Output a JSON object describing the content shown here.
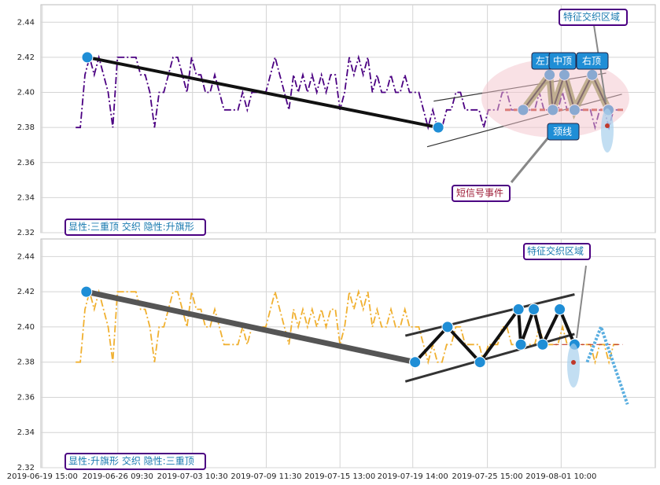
{
  "chart_data": [
    {
      "type": "line",
      "color": "#4b0082",
      "grid": true,
      "xlim": [
        -7.5,
        125
      ],
      "xticks": [
        -7.2,
        9.1,
        25.2,
        41.1,
        57,
        72.7,
        88.8,
        104.7
      ],
      "ylim": [
        2.32,
        2.45
      ],
      "yticks": [
        2.32,
        2.34,
        2.36,
        2.38,
        {
          "value": 2.4,
          "label": "2.40"
        },
        2.42,
        2.44
      ],
      "values": [
        2.38,
        2.38,
        2.41,
        2.42,
        2.41,
        2.42,
        2.41,
        2.4,
        2.38,
        2.42,
        2.42,
        2.42,
        2.42,
        2.42,
        2.41,
        2.41,
        2.4,
        2.38,
        2.4,
        2.4,
        2.41,
        2.42,
        2.42,
        2.41,
        2.4,
        2.42,
        2.41,
        2.41,
        2.4,
        2.4,
        2.41,
        2.4,
        2.39,
        2.39,
        2.39,
        2.39,
        2.4,
        2.39,
        2.4,
        2.4,
        2.4,
        2.4,
        2.41,
        2.42,
        2.41,
        2.4,
        2.39,
        2.41,
        2.4,
        2.41,
        2.4,
        2.41,
        2.4,
        2.41,
        2.4,
        2.41,
        2.41,
        2.39,
        2.4,
        2.42,
        2.41,
        2.42,
        2.41,
        2.42,
        2.4,
        2.41,
        2.4,
        2.4,
        2.41,
        2.4,
        2.4,
        2.41,
        2.4,
        2.4,
        2.4,
        2.39,
        2.38,
        2.39,
        2.38,
        2.38,
        2.39,
        2.39,
        2.4,
        2.4,
        2.39,
        2.39,
        2.39,
        2.39,
        2.38,
        2.39,
        2.39,
        2.39,
        2.4,
        2.4,
        2.39,
        2.39,
        2.39,
        2.39,
        2.39,
        2.39,
        2.4,
        2.39,
        2.39,
        2.39,
        2.39,
        2.4,
        2.39,
        2.39,
        2.39,
        2.39,
        2.39,
        2.39,
        2.38,
        2.39,
        2.39,
        2.38,
        2.39,
        2.39
      ],
      "trend": {
        "x": [
          2.5,
          78.2
        ],
        "values": [
          2.42,
          2.38
        ]
      },
      "pattern": {
        "x": [
          96.5,
          102.2,
          102.9,
          105.4,
          107.6,
          111.4,
          114.9
        ],
        "values": [
          2.39,
          2.41,
          2.39,
          2.41,
          2.39,
          2.41,
          2.39
        ]
      },
      "neckline": {
        "x": [
          92.6,
          118.6
        ],
        "values": [
          2.39,
          2.39
        ]
      },
      "channel_upper": {
        "x": [
          77.2,
          114.4
        ],
        "values": [
          2.395,
          2.411
        ]
      },
      "channel_lower": {
        "x": [
          75.8,
          117.8
        ],
        "values": [
          2.369,
          2.399
        ]
      },
      "annotations": [
        "左顶",
        "中顶",
        "右顶",
        "颈线",
        "特征交织区域",
        "短信号事件",
        "显性:三重顶 交织 隐性:升旗形"
      ]
    },
    {
      "type": "line",
      "color": "#f0b030",
      "grid": true,
      "xlim": [
        -7.5,
        125
      ],
      "xticks": [
        {
          "value": -7.2,
          "label": "2019-06-19 15:00"
        },
        {
          "value": 9.1,
          "label": "2019-06-26 09:30"
        },
        {
          "value": 25.2,
          "label": "2019-07-03 10:30"
        },
        {
          "value": 41.1,
          "label": "2019-07-09 11:30"
        },
        {
          "value": 57,
          "label": "2019-07-15 13:00"
        },
        {
          "value": 72.7,
          "label": "2019-07-19 14:00"
        },
        {
          "value": 88.8,
          "label": "2019-07-25 15:00"
        },
        {
          "value": 104.7,
          "label": "2019-08-01 10:00"
        }
      ],
      "ylim": [
        2.32,
        2.45
      ],
      "yticks": [
        2.32,
        2.34,
        2.36,
        2.38,
        {
          "value": 2.4,
          "label": "2.40"
        },
        2.42,
        2.44
      ],
      "values": [
        2.38,
        2.38,
        2.41,
        2.42,
        2.41,
        2.42,
        2.41,
        2.4,
        2.38,
        2.42,
        2.42,
        2.42,
        2.42,
        2.42,
        2.41,
        2.41,
        2.4,
        2.38,
        2.4,
        2.4,
        2.41,
        2.42,
        2.42,
        2.41,
        2.4,
        2.42,
        2.41,
        2.41,
        2.4,
        2.4,
        2.41,
        2.4,
        2.39,
        2.39,
        2.39,
        2.39,
        2.4,
        2.39,
        2.4,
        2.4,
        2.4,
        2.4,
        2.41,
        2.42,
        2.41,
        2.4,
        2.39,
        2.41,
        2.4,
        2.41,
        2.4,
        2.41,
        2.4,
        2.41,
        2.4,
        2.41,
        2.41,
        2.39,
        2.4,
        2.42,
        2.41,
        2.42,
        2.41,
        2.42,
        2.4,
        2.41,
        2.4,
        2.4,
        2.41,
        2.4,
        2.4,
        2.41,
        2.4,
        2.4,
        2.4,
        2.39,
        2.38,
        2.39,
        2.38,
        2.38,
        2.39,
        2.39,
        2.4,
        2.4,
        2.39,
        2.39,
        2.39,
        2.39,
        2.38,
        2.39,
        2.39,
        2.39,
        2.4,
        2.4,
        2.39,
        2.39,
        2.39,
        2.39,
        2.39,
        2.39,
        2.4,
        2.39,
        2.39,
        2.39,
        2.39,
        2.4,
        2.39,
        2.39,
        2.39,
        2.39,
        2.39,
        2.39,
        2.38,
        2.39,
        2.39,
        2.38,
        2.39,
        2.39
      ],
      "trend": {
        "x": [
          2.3,
          73.2
        ],
        "values": [
          2.42,
          2.38
        ]
      },
      "pattern": {
        "x": [
          73.2,
          80.2,
          87.2,
          95.5,
          96,
          98.8,
          100.7,
          104.4,
          107.6
        ],
        "values": [
          2.38,
          2.4,
          2.38,
          2.41,
          2.39,
          2.41,
          2.39,
          2.41,
          2.39
        ]
      },
      "neckline": {
        "x": [
          103,
          118
        ],
        "values": [
          2.39,
          2.39
        ]
      },
      "channel_upper": {
        "x": [
          71.1,
          107.6
        ],
        "values": [
          2.395,
          2.4185
        ]
      },
      "channel_lower": {
        "x": [
          71.1,
          107.6
        ],
        "values": [
          2.369,
          2.396
        ]
      },
      "flag": {
        "x": [
          110.3,
          113.3,
          119
        ],
        "values": [
          2.38,
          2.4,
          2.356
        ]
      },
      "annotations": [
        "特征交织区域",
        "显性:升旗形 交织 隐性:三重顶"
      ]
    }
  ]
}
